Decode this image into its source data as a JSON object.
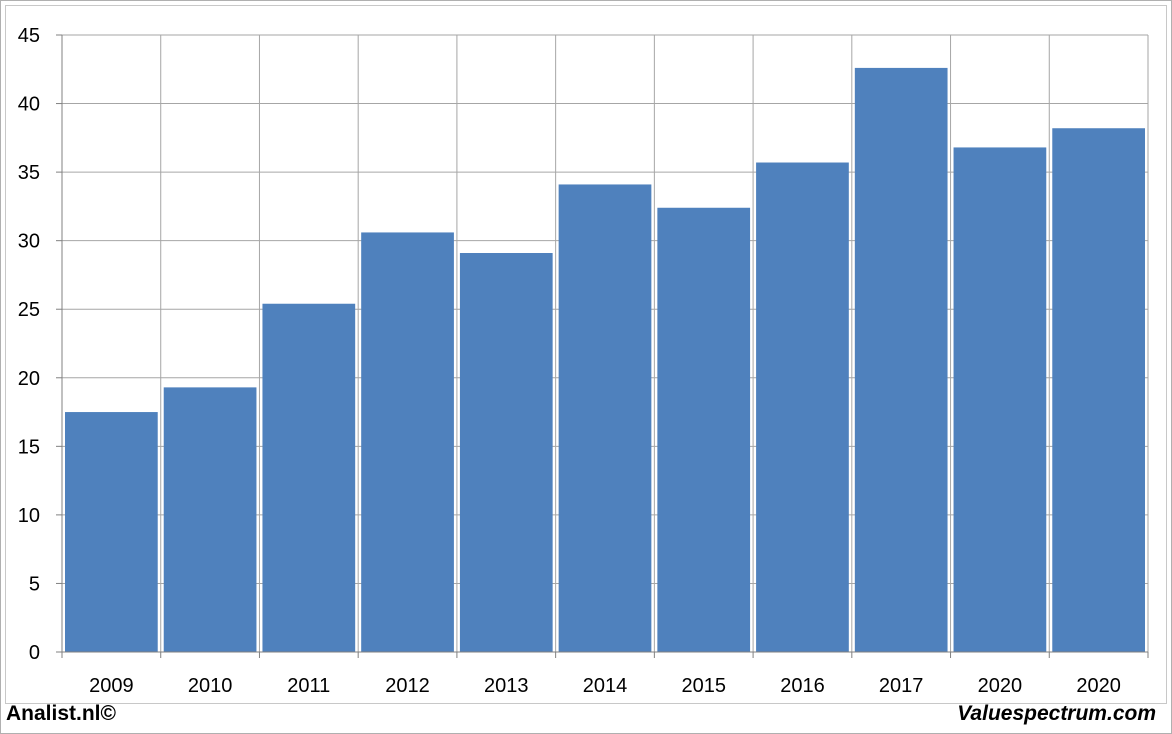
{
  "footer": {
    "left": "Analist.nl©",
    "right": "Valuespectrum.com"
  },
  "chart_data": {
    "type": "bar",
    "title": "",
    "xlabel": "",
    "ylabel": "",
    "categories": [
      "2009",
      "2010",
      "2011",
      "2012",
      "2013",
      "2014",
      "2015",
      "2016",
      "2017",
      "2020",
      "2020"
    ],
    "values": [
      17.5,
      19.3,
      25.4,
      30.6,
      29.1,
      34.1,
      32.4,
      35.7,
      42.6,
      36.8,
      38.2
    ],
    "ylim": [
      0,
      45
    ],
    "yticks": [
      0,
      5,
      10,
      15,
      20,
      25,
      30,
      35,
      40,
      45
    ],
    "grid": true,
    "legend": "none",
    "bar_color": "#4f81bd",
    "grid_color": "#a6a6a6"
  }
}
